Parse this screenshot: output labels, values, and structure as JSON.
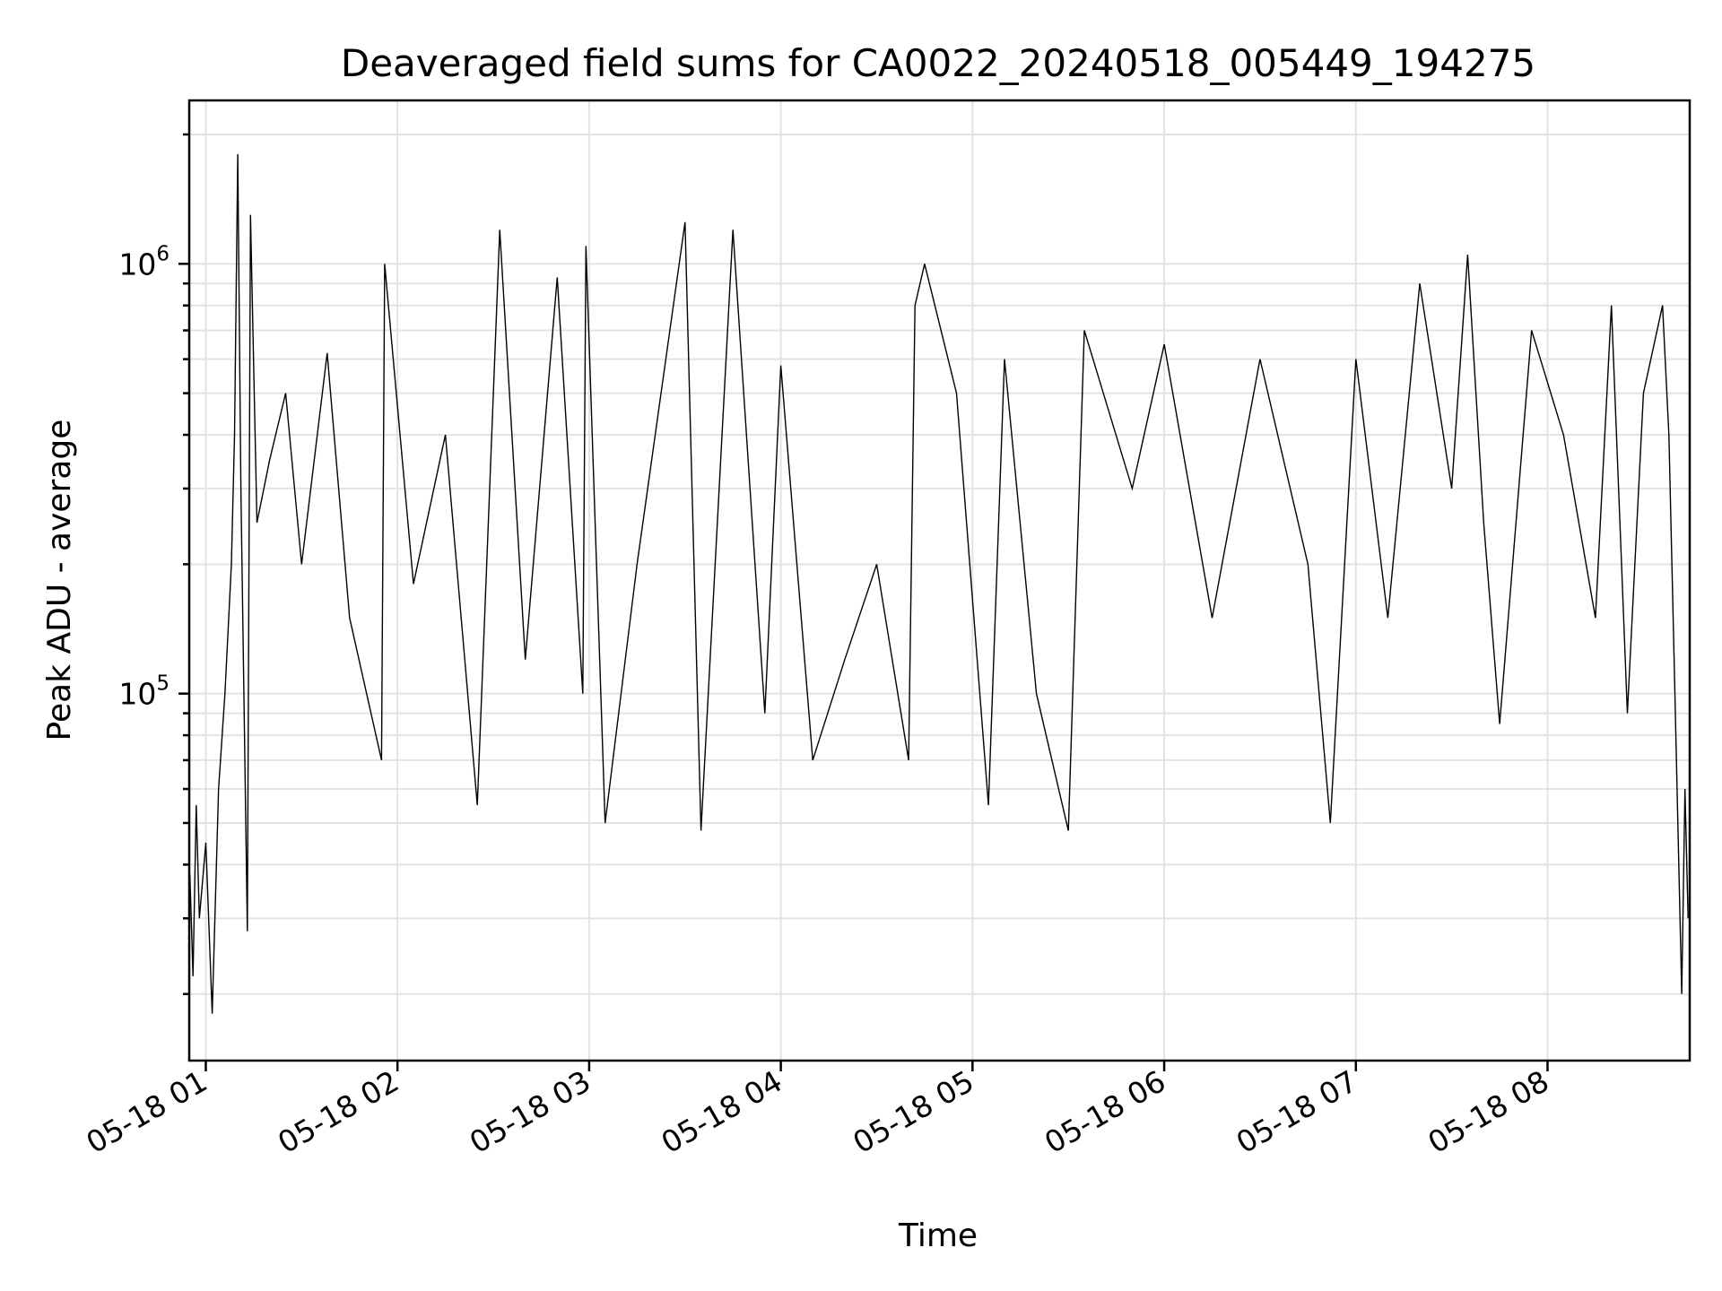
{
  "chart_data": {
    "type": "line",
    "title": "Deaveraged field sums for CA0022_20240518_005449_194275",
    "xlabel": "Time",
    "ylabel": "Peak ADU - average",
    "yscale": "log",
    "xlim": [
      "2024-05-18 00:54:49",
      "2024-05-18 08:44:30"
    ],
    "ylim": [
      14000,
      2400000
    ],
    "x_ticks": [
      {
        "value": "2024-05-18 01:00",
        "label": "05-18 01"
      },
      {
        "value": "2024-05-18 02:00",
        "label": "05-18 02"
      },
      {
        "value": "2024-05-18 03:00",
        "label": "05-18 03"
      },
      {
        "value": "2024-05-18 04:00",
        "label": "05-18 04"
      },
      {
        "value": "2024-05-18 05:00",
        "label": "05-18 05"
      },
      {
        "value": "2024-05-18 06:00",
        "label": "05-18 06"
      },
      {
        "value": "2024-05-18 07:00",
        "label": "05-18 07"
      },
      {
        "value": "2024-05-18 08:00",
        "label": "05-18 08"
      }
    ],
    "y_ticks": [
      {
        "value": 100000,
        "base": "10",
        "exp": "5"
      },
      {
        "value": 1000000,
        "base": "10",
        "exp": "6"
      }
    ],
    "grid": true,
    "line_color": "#000000",
    "series": [
      {
        "values": [
          [
            "2024-05-18 00:55",
            38000
          ],
          [
            "2024-05-18 00:56",
            22000
          ],
          [
            "2024-05-18 00:57",
            55000
          ],
          [
            "2024-05-18 00:58",
            30000
          ],
          [
            "2024-05-18 01:00",
            45000
          ],
          [
            "2024-05-18 01:02",
            18000
          ],
          [
            "2024-05-18 01:04",
            60000
          ],
          [
            "2024-05-18 01:06",
            100000
          ],
          [
            "2024-05-18 01:08",
            200000
          ],
          [
            "2024-05-18 01:09",
            400000
          ],
          [
            "2024-05-18 01:10",
            1800000
          ],
          [
            "2024-05-18 01:11",
            300000
          ],
          [
            "2024-05-18 01:13",
            28000
          ],
          [
            "2024-05-18 01:14",
            1300000
          ],
          [
            "2024-05-18 01:16",
            250000
          ],
          [
            "2024-05-18 01:20",
            350000
          ],
          [
            "2024-05-18 01:25",
            500000
          ],
          [
            "2024-05-18 01:30",
            200000
          ],
          [
            "2024-05-18 01:38",
            620000
          ],
          [
            "2024-05-18 01:45",
            150000
          ],
          [
            "2024-05-18 01:55",
            70000
          ],
          [
            "2024-05-18 01:56",
            1000000
          ],
          [
            "2024-05-18 02:05",
            180000
          ],
          [
            "2024-05-18 02:15",
            400000
          ],
          [
            "2024-05-18 02:25",
            55000
          ],
          [
            "2024-05-18 02:32",
            1200000
          ],
          [
            "2024-05-18 02:40",
            120000
          ],
          [
            "2024-05-18 02:50",
            930000
          ],
          [
            "2024-05-18 02:58",
            100000
          ],
          [
            "2024-05-18 02:59",
            1100000
          ],
          [
            "2024-05-18 03:05",
            50000
          ],
          [
            "2024-05-18 03:15",
            200000
          ],
          [
            "2024-05-18 03:30",
            1250000
          ],
          [
            "2024-05-18 03:35",
            48000
          ],
          [
            "2024-05-18 03:45",
            1200000
          ],
          [
            "2024-05-18 03:55",
            90000
          ],
          [
            "2024-05-18 04:00",
            580000
          ],
          [
            "2024-05-18 04:10",
            70000
          ],
          [
            "2024-05-18 04:20",
            120000
          ],
          [
            "2024-05-18 04:30",
            200000
          ],
          [
            "2024-05-18 04:40",
            70000
          ],
          [
            "2024-05-18 04:42",
            800000
          ],
          [
            "2024-05-18 04:45",
            1000000
          ],
          [
            "2024-05-18 04:55",
            500000
          ],
          [
            "2024-05-18 05:05",
            55000
          ],
          [
            "2024-05-18 05:10",
            600000
          ],
          [
            "2024-05-18 05:20",
            100000
          ],
          [
            "2024-05-18 05:30",
            48000
          ],
          [
            "2024-05-18 05:35",
            700000
          ],
          [
            "2024-05-18 05:50",
            300000
          ],
          [
            "2024-05-18 06:00",
            650000
          ],
          [
            "2024-05-18 06:15",
            150000
          ],
          [
            "2024-05-18 06:30",
            600000
          ],
          [
            "2024-05-18 06:45",
            200000
          ],
          [
            "2024-05-18 06:52",
            50000
          ],
          [
            "2024-05-18 07:00",
            600000
          ],
          [
            "2024-05-18 07:10",
            150000
          ],
          [
            "2024-05-18 07:20",
            900000
          ],
          [
            "2024-05-18 07:30",
            300000
          ],
          [
            "2024-05-18 07:35",
            1050000
          ],
          [
            "2024-05-18 07:40",
            250000
          ],
          [
            "2024-05-18 07:45",
            85000
          ],
          [
            "2024-05-18 07:55",
            700000
          ],
          [
            "2024-05-18 08:05",
            400000
          ],
          [
            "2024-05-18 08:15",
            150000
          ],
          [
            "2024-05-18 08:20",
            800000
          ],
          [
            "2024-05-18 08:25",
            90000
          ],
          [
            "2024-05-18 08:30",
            500000
          ],
          [
            "2024-05-18 08:36",
            800000
          ],
          [
            "2024-05-18 08:38",
            400000
          ],
          [
            "2024-05-18 08:40",
            90000
          ],
          [
            "2024-05-18 08:42",
            20000
          ],
          [
            "2024-05-18 08:43",
            60000
          ],
          [
            "2024-05-18 08:44",
            30000
          ]
        ]
      }
    ]
  }
}
